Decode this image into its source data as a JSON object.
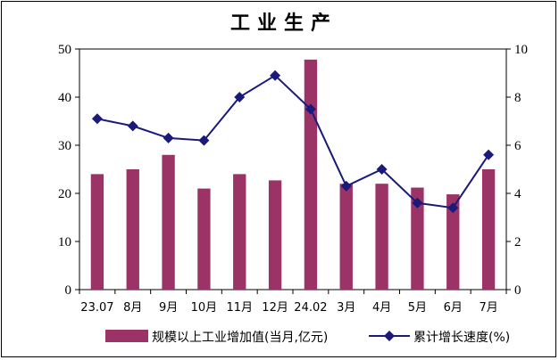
{
  "chart_data": {
    "type": "bar",
    "title": "工业生产",
    "categories": [
      "23.07",
      "8月",
      "9月",
      "10月",
      "11月",
      "12月",
      "24.02",
      "3月",
      "4月",
      "5月",
      "6月",
      "7月"
    ],
    "series": [
      {
        "name": "规模以上工业增加值(当月,亿元)",
        "type": "bar",
        "axis": "left",
        "color": "#9b3366",
        "values": [
          24,
          25,
          28,
          21,
          24,
          22.7,
          47.8,
          22,
          22,
          21.2,
          19.8,
          25
        ]
      },
      {
        "name": "累计增长速度(%)",
        "type": "line",
        "axis": "right",
        "color": "#1a1a7a",
        "marker": "diamond",
        "values": [
          7.1,
          6.8,
          6.3,
          6.2,
          8.0,
          8.9,
          7.5,
          4.3,
          5.0,
          3.6,
          3.4,
          5.6
        ]
      }
    ],
    "ylim_left": [
      0,
      50
    ],
    "yticks_left": [
      0,
      10,
      20,
      30,
      40,
      50
    ],
    "ylim_right": [
      0,
      10
    ],
    "yticks_right": [
      0,
      2,
      4,
      6,
      8,
      10
    ],
    "grid": false,
    "legend_position": "bottom"
  }
}
